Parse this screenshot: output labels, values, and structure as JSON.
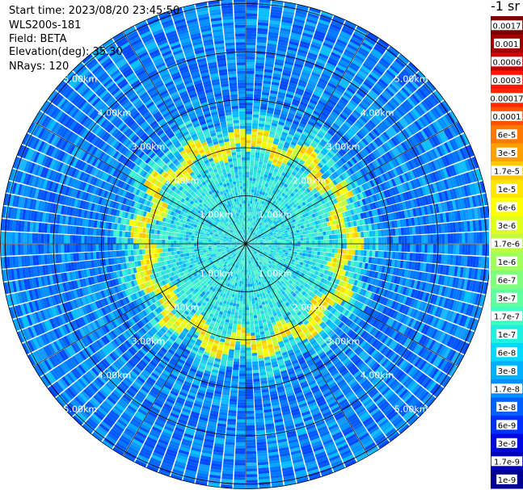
{
  "header": {
    "start_time": "Start time: 2023/08/20 23:45:50",
    "instrument": "WLS200s-181",
    "field": "Field: BETA",
    "elevation": "Elevation(deg): 35.30",
    "nrays": "NRays: 120"
  },
  "chart_data": {
    "type": "heatmap",
    "projection": "polar",
    "grid": true,
    "n_rays": 120,
    "range_unit": "km",
    "range_rings_km": [
      1,
      2,
      3,
      4,
      5
    ],
    "range_ring_labels": [
      "1.00km",
      "2.00km",
      "3.00km",
      "4.00km",
      "5.00km"
    ],
    "max_range_km": 5.1,
    "radial_spokes_deg": [
      0,
      30,
      60,
      90,
      120,
      150,
      180,
      210,
      240,
      270,
      300,
      330
    ],
    "cloud_ring_radius_km": [
      2.0,
      2.3
    ],
    "colorbar": {
      "title": "-1 sr",
      "position": "right",
      "scale": "log",
      "ticks": [
        "0.0017",
        "0.001",
        "0.0006",
        "0.0003",
        "0.00017",
        "0.0001",
        "6e-5",
        "3e-5",
        "1.7e-5",
        "1e-5",
        "6e-6",
        "3e-6",
        "1.7e-6",
        "1e-6",
        "6e-7",
        "3e-7",
        "1.7e-7",
        "1e-7",
        "6e-8",
        "3e-8",
        "1.7e-8",
        "1e-8",
        "6e-9",
        "3e-9",
        "1.7e-9",
        "1e-9"
      ],
      "colors": [
        "#7a0000",
        "#a00000",
        "#cc0000",
        "#ff1400",
        "#ff2800",
        "#ff5000",
        "#ff7800",
        "#ffa000",
        "#ffc800",
        "#ffe600",
        "#ffff00",
        "#e0ff1c",
        "#c0ff40",
        "#a0ff5c",
        "#80ff7c",
        "#60ffa0",
        "#40ffc0",
        "#20f0e0",
        "#00d8ff",
        "#00b0ff",
        "#0090ff",
        "#0060ff",
        "#0030ff",
        "#0008e0",
        "#0000b8",
        "#000090"
      ]
    }
  }
}
